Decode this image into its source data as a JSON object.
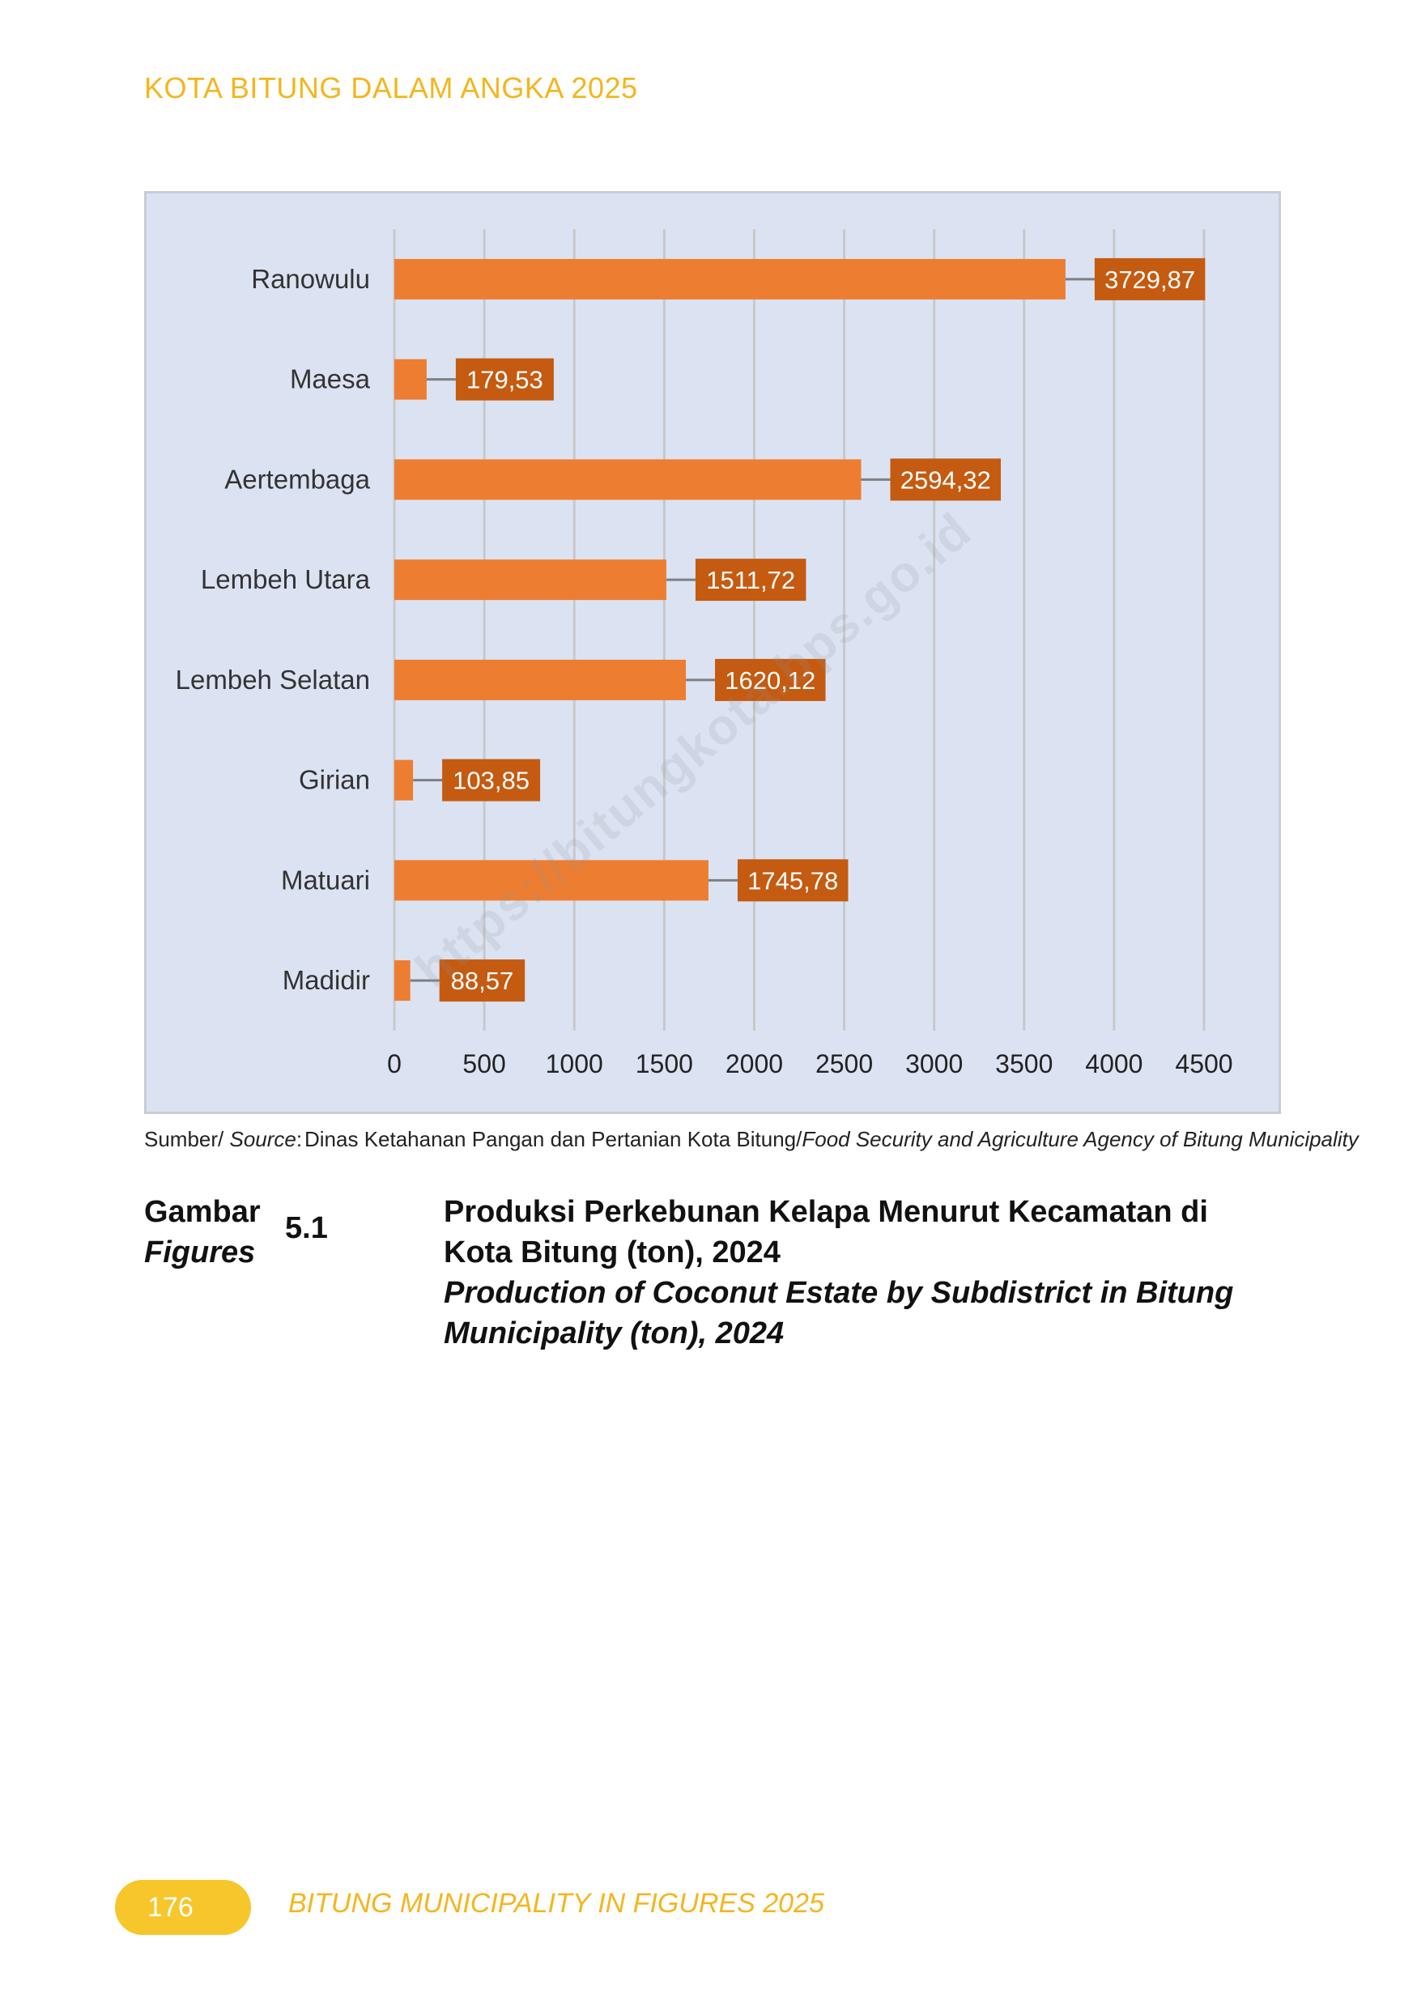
{
  "header": {
    "running_title": "KOTA BITUNG DALAM ANGKA 2025"
  },
  "chart_data": {
    "type": "bar",
    "orientation": "horizontal",
    "categories": [
      "Ranowulu",
      "Maesa",
      "Aertembaga",
      "Lembeh Utara",
      "Lembeh Selatan",
      "Girian",
      "Matuari",
      "Madidir"
    ],
    "values": [
      3729.87,
      179.53,
      2594.32,
      1511.72,
      1620.12,
      103.85,
      1745.78,
      88.57
    ],
    "value_labels": [
      "3729,87",
      "179,53",
      "2594,32",
      "1511,72",
      "1620,12",
      "103,85",
      "1745,78",
      "88,57"
    ],
    "x_ticks": [
      0,
      500,
      1000,
      1500,
      2000,
      2500,
      3000,
      3500,
      4000,
      4500
    ],
    "xlim": [
      0,
      4500
    ],
    "grid": true,
    "colors": {
      "bar": "#ed7d31",
      "label_box": "#c55a11",
      "label_text": "#ffffff",
      "background": "#dbe3f3",
      "grid": "#c8c8c8",
      "leader": "#7f7f7f"
    }
  },
  "source": {
    "label": "Sumber/",
    "label_en": "Source",
    "colon": ":",
    "text": "Dinas Ketahanan Pangan dan Pertanian Kota Bitung/",
    "text_en": "Food Security and Agriculture Agency of Bitung Municipality"
  },
  "caption": {
    "word_id": "Gambar",
    "word_en": "Figures",
    "number": "5.1",
    "title_id_line1": "Produksi Perkebunan Kelapa Menurut Kecamatan di",
    "title_id_line2": "Kota Bitung (ton), 2024",
    "title_en_line1": "Production of Coconut Estate by Subdistrict in Bitung",
    "title_en_line2": "Municipality (ton), 2024"
  },
  "watermark": "https://bitungkota.bps.go.id",
  "footer": {
    "page_number": "176",
    "running_title": "BITUNG MUNICIPALITY IN FIGURES 2025"
  }
}
